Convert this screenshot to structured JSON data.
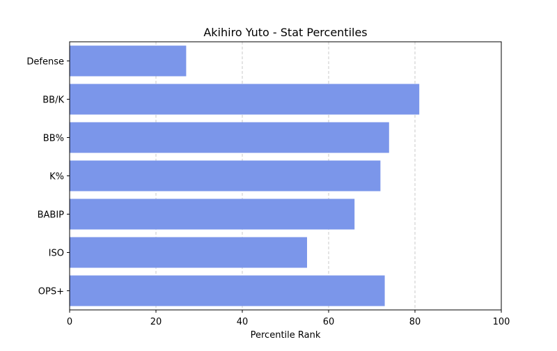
{
  "chart_data": {
    "type": "bar",
    "orientation": "horizontal",
    "title": "Akihiro Yuto - Stat Percentiles",
    "xlabel": "Percentile Rank",
    "ylabel": "",
    "categories": [
      "OPS+",
      "ISO",
      "BABIP",
      "K%",
      "BB%",
      "BB/K",
      "Defense"
    ],
    "values": [
      73,
      55,
      66,
      72,
      74,
      81,
      27
    ],
    "xlim": [
      0,
      100
    ],
    "xticks": [
      0,
      20,
      40,
      60,
      80,
      100
    ],
    "grid": "vertical-dashed",
    "legend": "none",
    "bar_color": "#7b96ea"
  }
}
